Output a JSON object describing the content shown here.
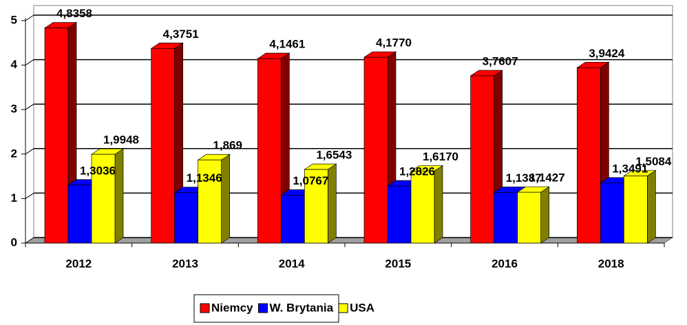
{
  "chart_data": {
    "type": "bar3d",
    "categories": [
      "2012",
      "2013",
      "2014",
      "2015",
      "2016",
      "2018"
    ],
    "series": [
      {
        "name": "Niemcy",
        "color": "#ff0000",
        "values": [
          4.8358,
          4.3751,
          4.1461,
          4.177,
          3.7607,
          3.9424
        ],
        "value_labels": [
          "4,8358",
          "4,3751",
          "4,1461",
          "4,1770",
          "3,7607",
          "3,9424"
        ]
      },
      {
        "name": "W. Brytania",
        "color": "#0000ff",
        "values": [
          1.3036,
          1.1346,
          1.0767,
          1.2826,
          1.1387,
          1.3491
        ],
        "value_labels": [
          "1,3036",
          "1,1346",
          "1,0767",
          "1,2826",
          "1,1387",
          "1,3491"
        ]
      },
      {
        "name": "USA",
        "color": "#ffff00",
        "values": [
          1.9948,
          1.869,
          1.6543,
          1.617,
          1.1427,
          1.5084
        ],
        "value_labels": [
          "1,9948",
          "1,869",
          "1,6543",
          "1,6170",
          "1,1427",
          "1,5084"
        ]
      }
    ],
    "ylim": [
      0,
      5
    ],
    "yticks": [
      0,
      1,
      2,
      3,
      4,
      5
    ],
    "grid": true,
    "legend": "bottom"
  }
}
